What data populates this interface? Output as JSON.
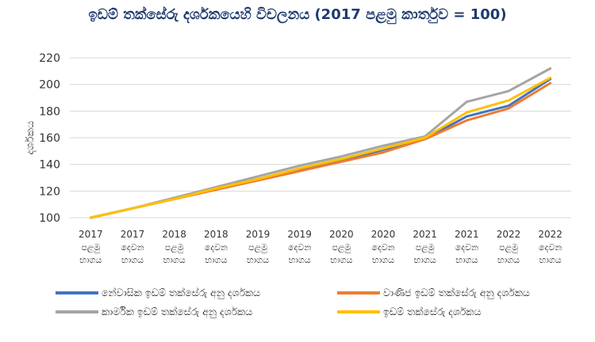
{
  "chart_data": {
    "type": "line",
    "title": "ඉඩම් තක්සේරු දර්ශකයෙහි විචලනය (2017 පළමු කාර්තුව = 100)",
    "ylabel": "දර්ශකය",
    "xlabel": "",
    "ylim": [
      100,
      220
    ],
    "yticks": [
      100,
      120,
      140,
      160,
      180,
      200,
      220
    ],
    "grid": true,
    "legend_position": "bottom",
    "categories": [
      [
        "2017",
        "පළමු",
        "භාගය"
      ],
      [
        "2017",
        "දෙවන",
        "භාගය"
      ],
      [
        "2018",
        "පළමු",
        "භාගය"
      ],
      [
        "2018",
        "දෙවන",
        "භාගය"
      ],
      [
        "2019",
        "පළමු",
        "භාගය"
      ],
      [
        "2019",
        "දෙවන",
        "භාගය"
      ],
      [
        "2020",
        "පළමු",
        "භාගය"
      ],
      [
        "2020",
        "දෙවන",
        "භාගය"
      ],
      [
        "2021",
        "පළමු",
        "භාගය"
      ],
      [
        "2021",
        "දෙවන",
        "භාගය"
      ],
      [
        "2022",
        "පළමු",
        "භාගය"
      ],
      [
        "2022",
        "දෙවන",
        "භාගය"
      ]
    ],
    "series": [
      {
        "name": "නේවාසික ඉඩම් තක්සේරු අනු දර්ශකය",
        "color": "#4472c4",
        "values": [
          100,
          107,
          114,
          122,
          129,
          136,
          143,
          151,
          159,
          176,
          184,
          204
        ]
      },
      {
        "name": "වාණිජ ඉඩම් තක්සේරු අනු දර්ශකය",
        "color": "#ed7d31",
        "values": [
          100,
          107,
          114,
          121,
          128,
          135,
          142,
          149,
          159,
          173,
          182,
          201
        ]
      },
      {
        "name": "කාර්මික ඉඩම් තක්සේරු අනු දර්ශකය",
        "color": "#a5a5a5",
        "values": [
          100,
          107,
          115,
          123,
          131,
          139,
          146,
          154,
          161,
          187,
          195,
          212
        ]
      },
      {
        "name": "ඉඩම් තක්සේරු දර්ශකය",
        "color": "#ffc000",
        "values": [
          100,
          107,
          114,
          122,
          129,
          137,
          144,
          152,
          160,
          179,
          188,
          205
        ]
      }
    ]
  }
}
